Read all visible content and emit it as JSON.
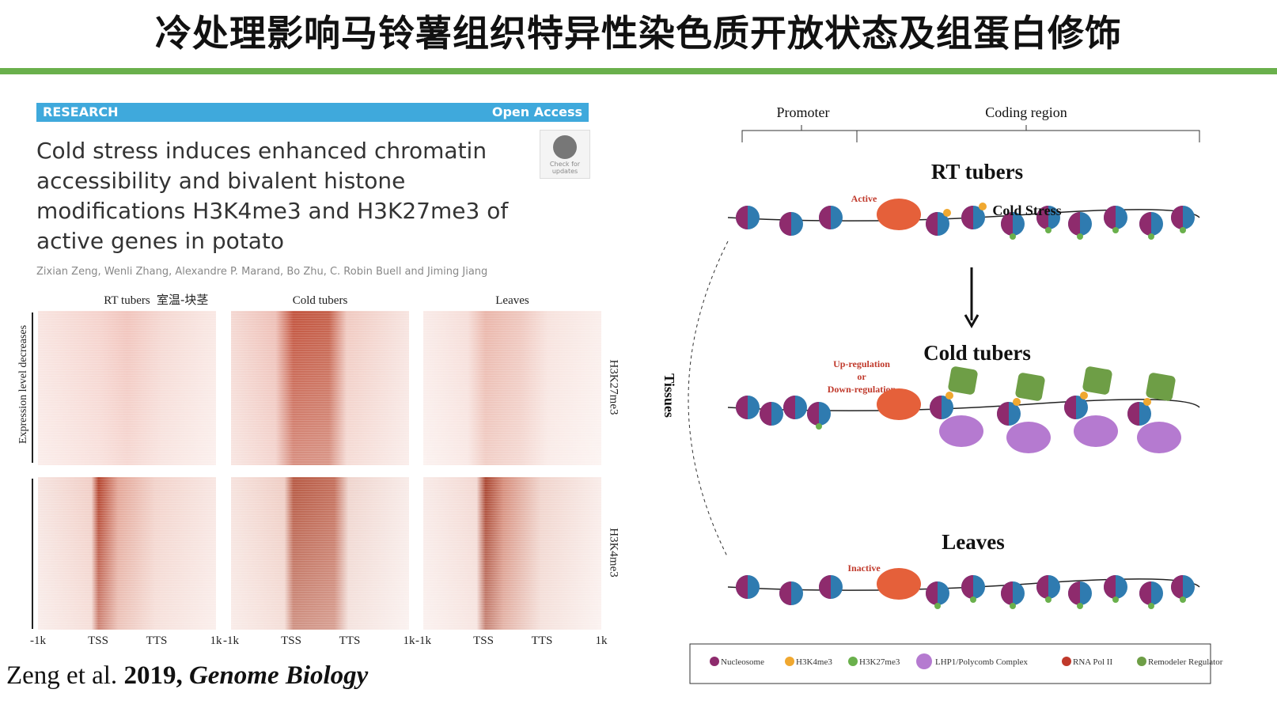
{
  "slide": {
    "title": "冷处理影响马铃薯组织特异性染色质开放状态及组蛋白修饰"
  },
  "paper": {
    "section": "RESEARCH",
    "access": "Open Access",
    "title": "Cold stress induces enhanced chromatin accessibility and bivalent histone modifications H3K4me3 and H3K27me3 of active genes in potato",
    "authors": "Zixian Zeng, Wenli Zhang, Alexandre P. Marand, Bo Zhu, C. Robin Buell and Jiming Jiang",
    "badge": "Check for updates"
  },
  "heatmap": {
    "columns": [
      "RT tubers",
      "Cold tubers",
      "Leaves"
    ],
    "annotation": "室温-块茎",
    "rows": [
      "H3K27me3",
      "H3K4me3"
    ],
    "y_label": "Expression level decreases",
    "x_ticks": [
      "-1k",
      "TSS",
      "TTS",
      "1k"
    ]
  },
  "model": {
    "regions": [
      "Promoter",
      "Coding region"
    ],
    "panels": [
      {
        "title": "RT tubers",
        "state": [
          "Active"
        ]
      },
      {
        "title": "Cold tubers",
        "state": [
          "Up-regulation",
          "or",
          "Down-regulation"
        ]
      },
      {
        "title": "Leaves",
        "state": [
          "Inactive"
        ]
      }
    ],
    "transition": "Cold Stress",
    "axis": "Tissues",
    "legend": [
      "Nucleosome",
      "H3K4me3",
      "H3K27me3",
      "LHP1/Polycomb Complex",
      "RNA Pol II",
      "Remodeler Regulator"
    ]
  },
  "citation": {
    "authors": "Zeng et al.",
    "year": "2019,",
    "journal": "Genome Biology"
  }
}
